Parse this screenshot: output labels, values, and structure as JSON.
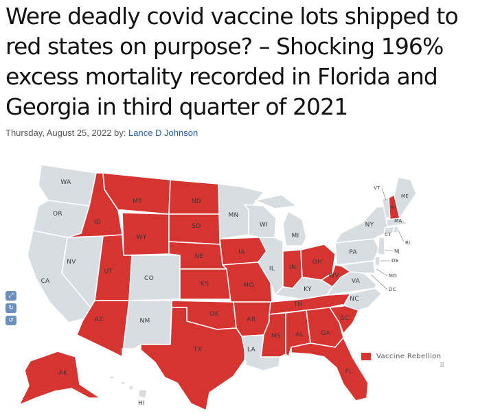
{
  "article": {
    "title": "Were deadly covid vaccine lots shipped to red states on purpose? – Shocking 196% excess mortality recorded in Florida and Georgia in third quarter of 2021",
    "date": "Thursday, August 25, 2022",
    "by": "by:",
    "author": "Lance D Johnson"
  },
  "map": {
    "legend_label": "Vaccine Rebellion",
    "colors": {
      "red": "#d53431",
      "grey": "#d8dde2",
      "border": "#ffffff",
      "label": "#3a3a3a"
    },
    "states": {
      "WA": "WA",
      "OR": "OR",
      "CA": "CA",
      "NV": "NV",
      "ID": "ID",
      "MT": "MT",
      "WY": "WY",
      "UT": "UT",
      "AZ": "AZ",
      "CO": "CO",
      "NM": "NM",
      "ND": "ND",
      "SD": "SD",
      "NE": "NE",
      "KS": "KS",
      "OK": "OK",
      "TX": "TX",
      "MN": "MN",
      "IA": "IA",
      "MO": "MO",
      "AR": "AR",
      "LA": "LA",
      "WI": "WI",
      "IL": "IL",
      "MI": "MI",
      "IN": "IN",
      "OH": "OH",
      "KY": "KY",
      "TN": "TN",
      "MS": "MS",
      "AL": "AL",
      "GA": "GA",
      "FL": "FL",
      "SC": "SC",
      "NC": "NC",
      "VA": "VA",
      "WV": "WV",
      "PA": "PA",
      "NY": "NY",
      "VT": "VT",
      "NH": "NH",
      "ME": "ME",
      "MA": "MA",
      "CT": "CT",
      "RI": "RI",
      "NJ": "NJ",
      "DE": "DE",
      "MD": "MD",
      "DC": "DC",
      "AK": "AK",
      "HI": "HI"
    },
    "red_states": [
      "ID",
      "MT",
      "WY",
      "UT",
      "AZ",
      "ND",
      "SD",
      "NE",
      "KS",
      "OK",
      "TX",
      "IA",
      "MO",
      "AR",
      "IN",
      "OH",
      "WV",
      "TN",
      "MS",
      "AL",
      "GA",
      "FL",
      "SC",
      "NH",
      "AK"
    ]
  },
  "tools": {
    "icons": [
      "zoom-icon",
      "refresh-icon",
      "reset-icon"
    ]
  }
}
